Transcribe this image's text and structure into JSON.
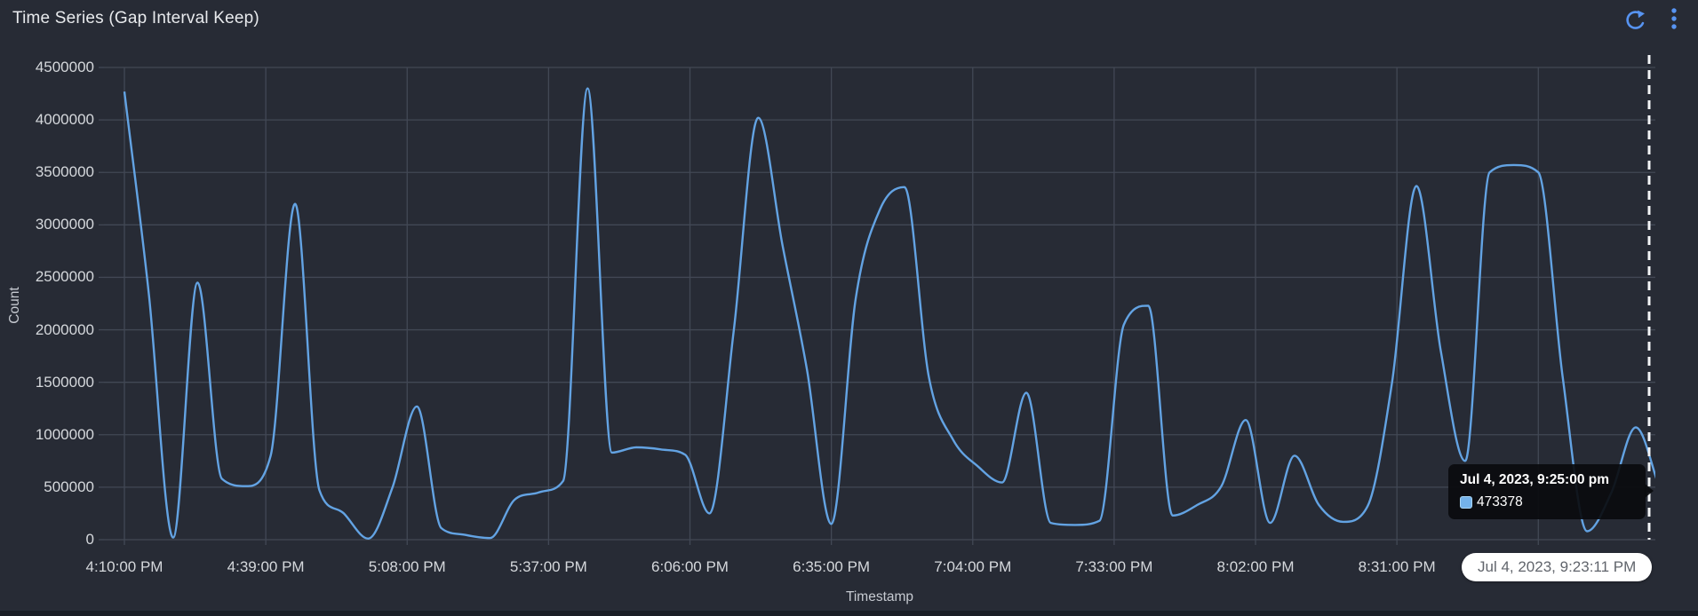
{
  "panel": {
    "title": "Time Series (Gap Interval Keep)"
  },
  "toolbar": {
    "refresh_icon": "refresh-circular-arrow",
    "menu_icon": "kebab-vertical-dots",
    "icon_color": "#5794f2"
  },
  "colors": {
    "background": "#272b35",
    "gridline": "#424855",
    "line": "#63a3e3",
    "axis_text": "#d5d8dc",
    "title_text": "#e8eaed",
    "cursor_line": "#f3f5f7",
    "tooltip_swatch_fill": "#74b2ea",
    "tooltip_swatch_border": "#aad6f5"
  },
  "tooltip": {
    "title": "Jul 4, 2023, 9:25:00 pm",
    "value": "473378"
  },
  "time_pill": {
    "label": "Jul 4, 2023, 9:23:11 PM"
  },
  "chart_data": {
    "type": "line",
    "title": "Time Series (Gap Interval Keep)",
    "xlabel": "Timestamp",
    "ylabel": "Count",
    "ylim": [
      0,
      4500000
    ],
    "grid": true,
    "legend": false,
    "y_ticks": [
      0,
      500000,
      1000000,
      1500000,
      2000000,
      2500000,
      3000000,
      3500000,
      4000000,
      4500000
    ],
    "x_tick_labels": [
      "4:10:00 PM",
      "4:39:00 PM",
      "5:08:00 PM",
      "5:37:00 PM",
      "6:06:00 PM",
      "6:35:00 PM",
      "7:04:00 PM",
      "7:33:00 PM",
      "8:02:00 PM",
      "8:31:00 PM"
    ],
    "x_tick_interval_minutes": 29,
    "x_unlabeled_trailing_gridlines": 1,
    "cursor": {
      "hover_time": "Jul 4, 2023, 9:23:11 PM",
      "snapped_point_time": "Jul 4, 2023, 9:25:00 pm",
      "snapped_value": 473378
    },
    "series": [
      {
        "name": "Count",
        "color": "#63a3e3",
        "date": "Jul 4, 2023",
        "start_time": "4:10 PM",
        "interval_minutes": 5,
        "points": [
          {
            "time": "4:10 PM",
            "value": 4270000
          },
          {
            "time": "4:15 PM",
            "value": 2350000
          },
          {
            "time": "4:20 PM",
            "value": 20000
          },
          {
            "time": "4:25 PM",
            "value": 2450000
          },
          {
            "time": "4:30 PM",
            "value": 580000
          },
          {
            "time": "4:35 PM",
            "value": 510000
          },
          {
            "time": "4:40 PM",
            "value": 800000
          },
          {
            "time": "4:45 PM",
            "value": 3200000
          },
          {
            "time": "4:50 PM",
            "value": 470000
          },
          {
            "time": "4:55 PM",
            "value": 250000
          },
          {
            "time": "5:00 PM",
            "value": 10000
          },
          {
            "time": "5:05 PM",
            "value": 500000
          },
          {
            "time": "5:10 PM",
            "value": 1270000
          },
          {
            "time": "5:15 PM",
            "value": 110000
          },
          {
            "time": "5:20 PM",
            "value": 45000
          },
          {
            "time": "5:25 PM",
            "value": 15000
          },
          {
            "time": "5:30 PM",
            "value": 380000
          },
          {
            "time": "5:35 PM",
            "value": 450000
          },
          {
            "time": "5:40 PM",
            "value": 560000
          },
          {
            "time": "5:45 PM",
            "value": 4300000
          },
          {
            "time": "5:50 PM",
            "value": 830000
          },
          {
            "time": "5:55 PM",
            "value": 880000
          },
          {
            "time": "6:00 PM",
            "value": 860000
          },
          {
            "time": "6:05 PM",
            "value": 810000
          },
          {
            "time": "6:10 PM",
            "value": 250000
          },
          {
            "time": "6:15 PM",
            "value": 2000000
          },
          {
            "time": "6:20 PM",
            "value": 4020000
          },
          {
            "time": "6:25 PM",
            "value": 2800000
          },
          {
            "time": "6:30 PM",
            "value": 1620000
          },
          {
            "time": "6:35 PM",
            "value": 150000
          },
          {
            "time": "6:40 PM",
            "value": 2300000
          },
          {
            "time": "6:45 PM",
            "value": 3150000
          },
          {
            "time": "6:50 PM",
            "value": 3360000
          },
          {
            "time": "6:55 PM",
            "value": 1550000
          },
          {
            "time": "7:00 PM",
            "value": 950000
          },
          {
            "time": "7:05 PM",
            "value": 700000
          },
          {
            "time": "7:10 PM",
            "value": 545000
          },
          {
            "time": "7:15 PM",
            "value": 1400000
          },
          {
            "time": "7:20 PM",
            "value": 160000
          },
          {
            "time": "7:25 PM",
            "value": 140000
          },
          {
            "time": "7:30 PM",
            "value": 180000
          },
          {
            "time": "7:35 PM",
            "value": 2050000
          },
          {
            "time": "7:40 PM",
            "value": 2230000
          },
          {
            "time": "7:45 PM",
            "value": 230000
          },
          {
            "time": "7:50 PM",
            "value": 330000
          },
          {
            "time": "7:55 PM",
            "value": 510000
          },
          {
            "time": "8:00 PM",
            "value": 1140000
          },
          {
            "time": "8:05 PM",
            "value": 160000
          },
          {
            "time": "8:10 PM",
            "value": 800000
          },
          {
            "time": "8:15 PM",
            "value": 330000
          },
          {
            "time": "8:20 PM",
            "value": 170000
          },
          {
            "time": "8:25 PM",
            "value": 320000
          },
          {
            "time": "8:30 PM",
            "value": 1500000
          },
          {
            "time": "8:35 PM",
            "value": 3370000
          },
          {
            "time": "8:40 PM",
            "value": 1800000
          },
          {
            "time": "8:45 PM",
            "value": 750000
          },
          {
            "time": "8:50 PM",
            "value": 3500000
          },
          {
            "time": "8:55 PM",
            "value": 3570000
          },
          {
            "time": "9:00 PM",
            "value": 3500000
          },
          {
            "time": "9:05 PM",
            "value": 1550000
          },
          {
            "time": "9:10 PM",
            "value": 80000
          },
          {
            "time": "9:15 PM",
            "value": 450000
          },
          {
            "time": "9:20 PM",
            "value": 1070000
          },
          {
            "time": "9:25 PM",
            "value": 473378
          }
        ]
      }
    ]
  }
}
